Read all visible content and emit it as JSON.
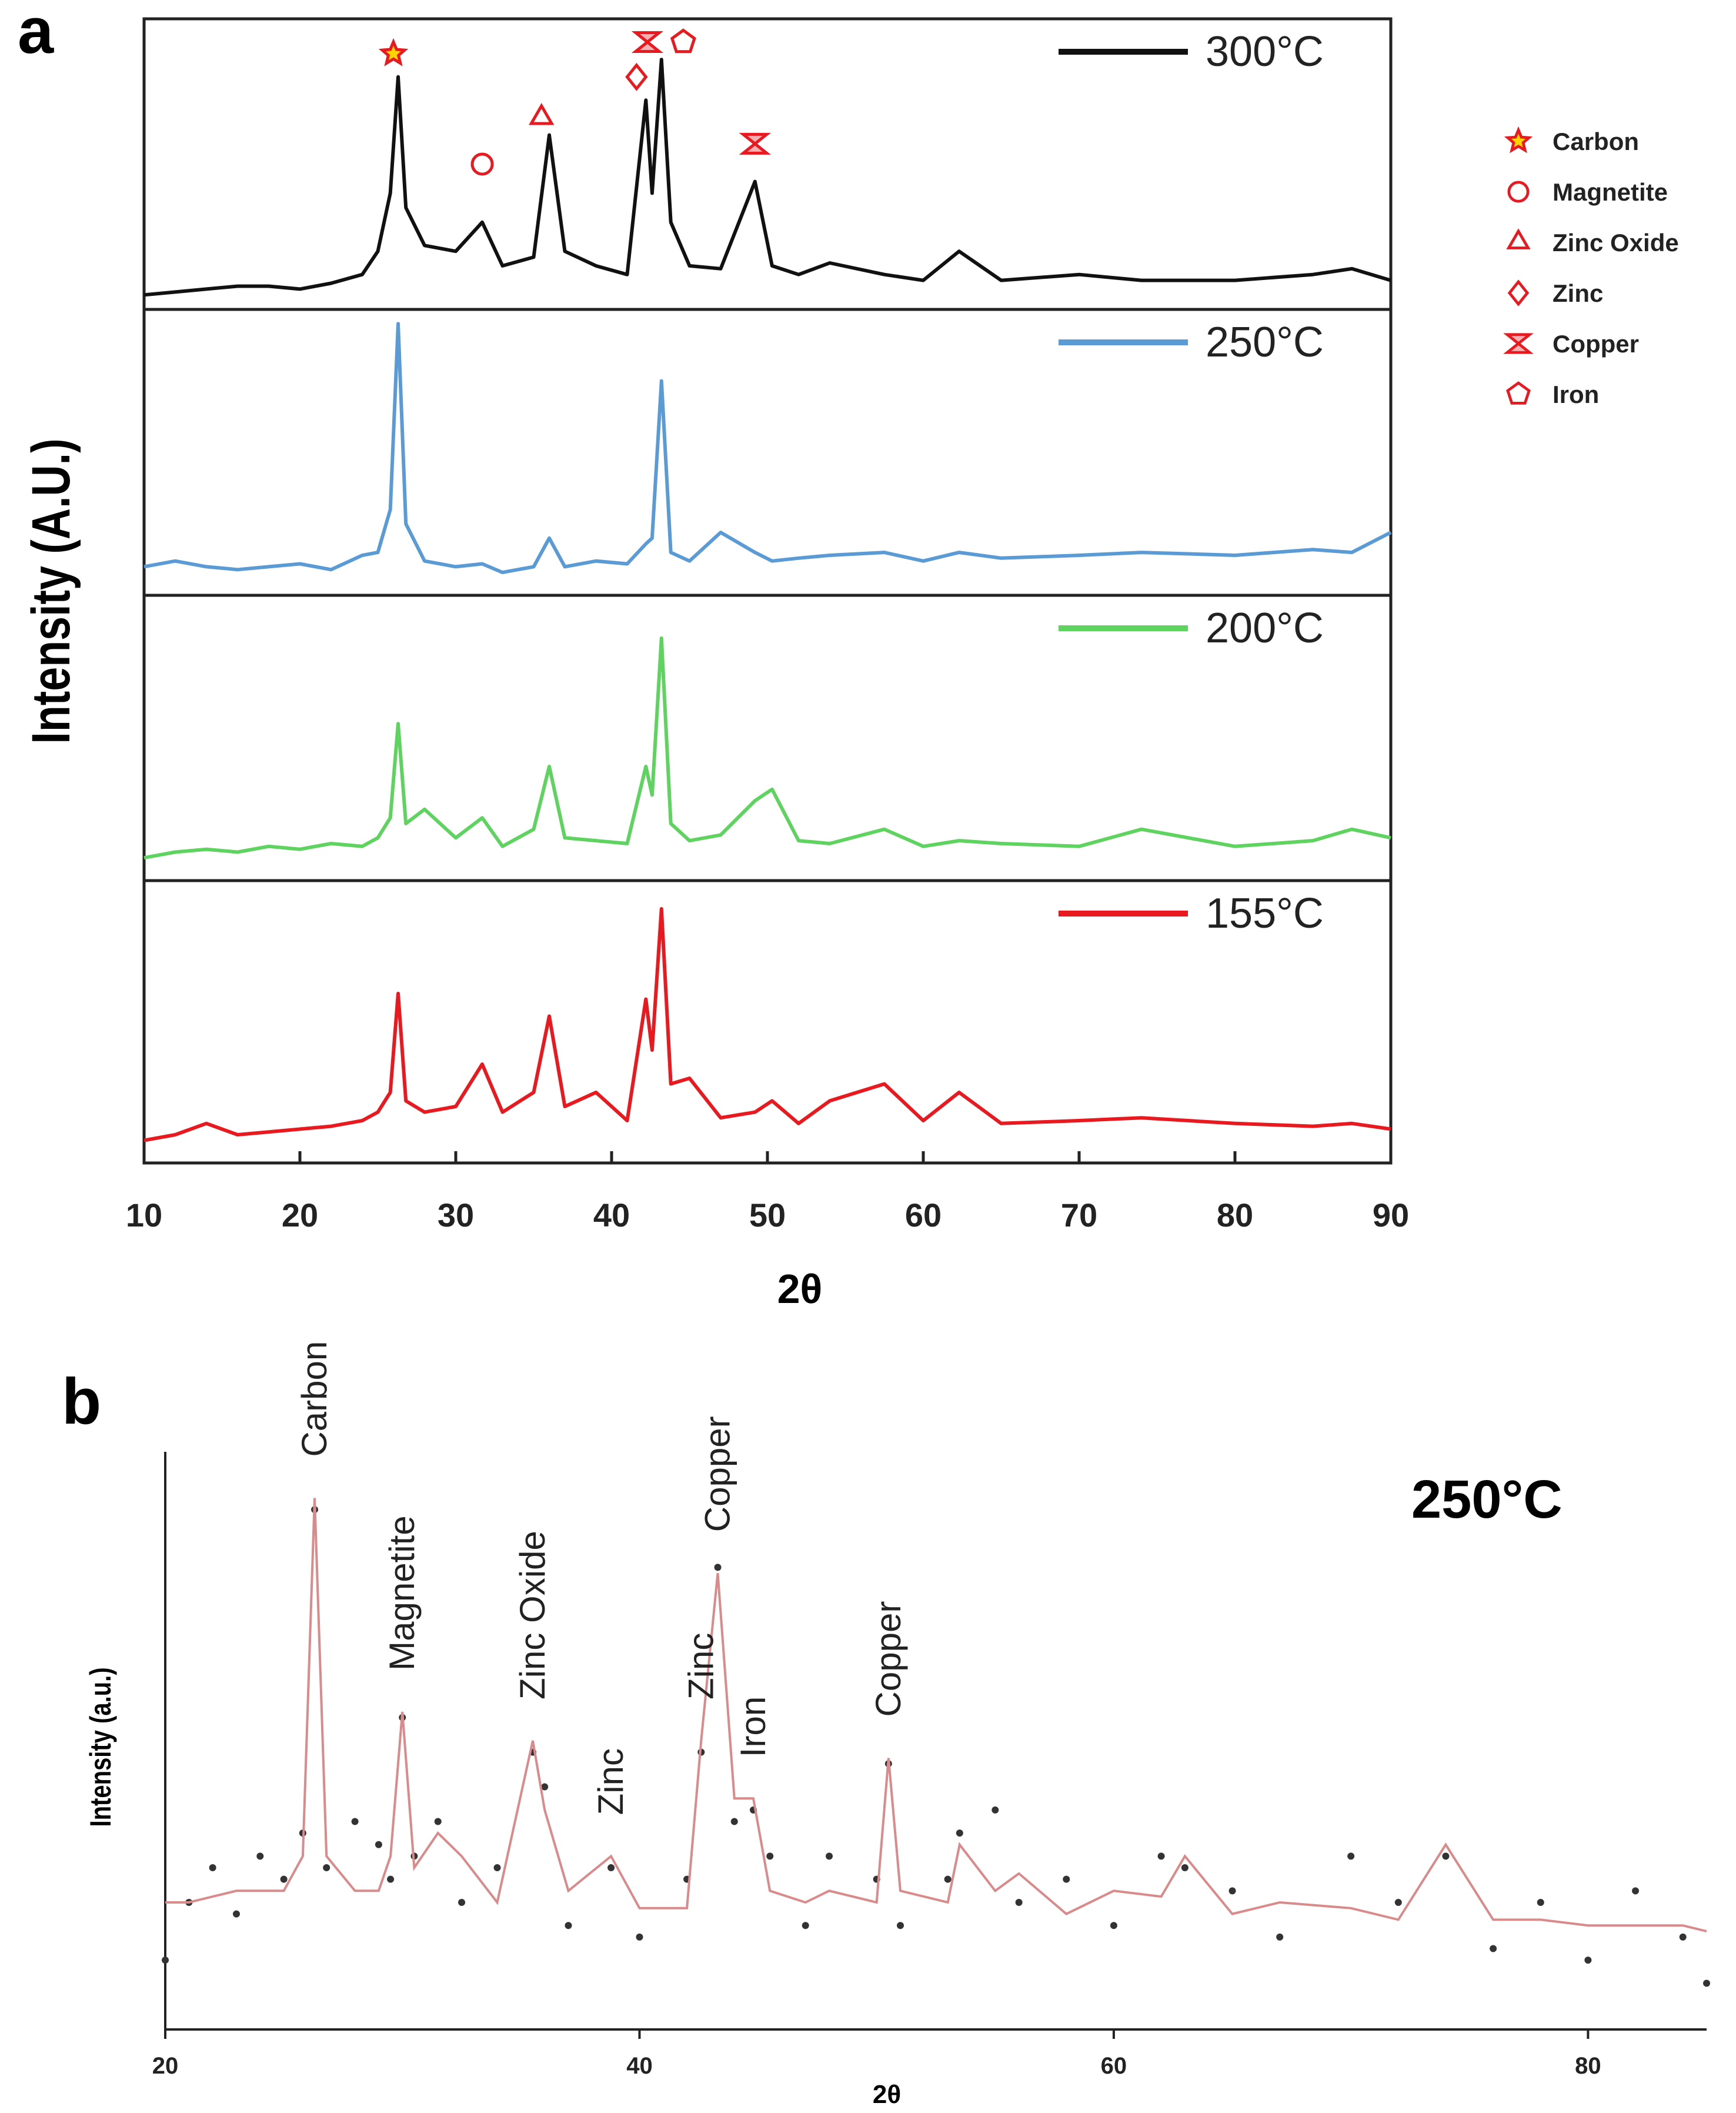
{
  "chart_data": [
    {
      "type": "line",
      "panel_label": "a",
      "xlabel": "2θ",
      "ylabel": "Intensity (A.U.)",
      "xlim": [
        10,
        90
      ],
      "xticks": [
        10,
        20,
        30,
        40,
        50,
        60,
        70,
        80,
        90
      ],
      "ylim": [
        0,
        100
      ],
      "x": [
        10,
        12,
        14,
        16,
        18,
        20,
        22,
        24,
        25,
        25.8,
        26.3,
        26.8,
        28,
        30,
        31.7,
        33,
        35,
        36,
        37,
        39,
        41,
        42.2,
        42.6,
        43.2,
        43.8,
        45,
        47,
        49.2,
        50.3,
        52,
        54,
        57.5,
        60,
        62.3,
        65,
        70,
        74,
        80,
        85,
        87.5,
        90
      ],
      "series": [
        {
          "name": "300°C",
          "color": "#111111",
          "values": [
            5,
            6,
            7,
            8,
            8,
            7,
            9,
            12,
            20,
            40,
            80,
            35,
            22,
            20,
            30,
            15,
            18,
            60,
            20,
            15,
            12,
            72,
            40,
            86,
            30,
            15,
            14,
            44,
            15,
            12,
            16,
            12,
            10,
            20,
            10,
            12,
            10,
            10,
            12,
            14,
            10
          ]
        },
        {
          "name": "250°C",
          "color": "#5b9bd5",
          "values": [
            10,
            12,
            10,
            9,
            10,
            11,
            9,
            14,
            15,
            30,
            95,
            25,
            12,
            10,
            11,
            8,
            10,
            20,
            10,
            12,
            11,
            18,
            20,
            75,
            15,
            12,
            22,
            15,
            12,
            13,
            14,
            15,
            12,
            15,
            13,
            14,
            15,
            14,
            16,
            15,
            22
          ]
        },
        {
          "name": "200°C",
          "color": "#5fd35f",
          "values": [
            8,
            10,
            11,
            10,
            12,
            11,
            13,
            12,
            15,
            22,
            55,
            20,
            25,
            15,
            22,
            12,
            18,
            40,
            15,
            14,
            13,
            40,
            30,
            85,
            20,
            14,
            16,
            28,
            32,
            14,
            13,
            18,
            12,
            14,
            13,
            12,
            18,
            12,
            14,
            18,
            15
          ]
        },
        {
          "name": "155°C",
          "color": "#e8191f",
          "values": [
            8,
            10,
            14,
            10,
            11,
            12,
            13,
            15,
            18,
            25,
            60,
            22,
            18,
            20,
            35,
            18,
            25,
            52,
            20,
            25,
            15,
            58,
            40,
            90,
            28,
            30,
            16,
            18,
            22,
            14,
            22,
            28,
            15,
            25,
            14,
            15,
            16,
            14,
            13,
            14,
            12
          ]
        }
      ],
      "markers": [
        {
          "symbol": "star",
          "x": 26.0,
          "y": 88
        },
        {
          "symbol": "circle",
          "x": 31.7,
          "y": 50
        },
        {
          "symbol": "triangle",
          "x": 35.5,
          "y": 66
        },
        {
          "symbol": "diamond",
          "x": 41.6,
          "y": 80
        },
        {
          "symbol": "hourglass",
          "x": 42.3,
          "y": 92
        },
        {
          "symbol": "pentagon",
          "x": 44.6,
          "y": 92
        },
        {
          "symbol": "hourglass",
          "x": 49.2,
          "y": 57
        }
      ],
      "legend": [
        {
          "symbol": "star",
          "label": "Carbon"
        },
        {
          "symbol": "circle",
          "label": "Magnetite"
        },
        {
          "symbol": "triangle",
          "label": "Zinc Oxide"
        },
        {
          "symbol": "diamond",
          "label": "Zinc"
        },
        {
          "symbol": "hourglass",
          "label": "Copper"
        },
        {
          "symbol": "pentagon",
          "label": "Iron"
        }
      ]
    },
    {
      "type": "scatter",
      "panel_label": "b",
      "xlabel": "2θ",
      "ylabel": "Intensity (a.u.)",
      "annotation_text": "250°C",
      "xlim": [
        20,
        85
      ],
      "xticks": [
        20,
        40,
        60,
        80
      ],
      "ylim": [
        0,
        100
      ],
      "x": [
        20,
        21,
        22,
        23,
        24,
        25,
        25.8,
        26.3,
        26.8,
        28,
        29,
        29.5,
        30,
        30.5,
        31.5,
        32.5,
        34,
        35.5,
        36,
        37,
        38.8,
        40,
        42,
        42.6,
        43.3,
        44,
        44.8,
        45.5,
        47,
        48,
        50,
        50.5,
        51,
        53,
        53.5,
        55,
        56,
        58,
        60,
        62,
        63,
        65,
        67,
        70,
        72,
        74,
        76,
        78,
        80,
        82,
        84,
        85
      ],
      "series": [
        {
          "mode": "markers",
          "color": "#333333",
          "values": [
            12,
            22,
            28,
            20,
            30,
            26,
            34,
            90,
            28,
            36,
            32,
            26,
            54,
            30,
            36,
            22,
            28,
            48,
            42,
            18,
            28,
            16,
            26,
            48,
            80,
            36,
            38,
            30,
            18,
            30,
            26,
            46,
            18,
            26,
            34,
            38,
            22,
            26,
            18,
            30,
            28,
            24,
            16,
            30,
            22,
            30,
            14,
            22,
            12,
            24,
            16,
            8
          ]
        },
        {
          "mode": "line",
          "color": "#d98a8a",
          "values": [
            22,
            22,
            23,
            24,
            24,
            24,
            30,
            92,
            30,
            24,
            24,
            30,
            55,
            28,
            34,
            30,
            22,
            50,
            38,
            24,
            30,
            21,
            21,
            50,
            79,
            40,
            40,
            24,
            22,
            24,
            22,
            47,
            24,
            22,
            32,
            24,
            27,
            20,
            24,
            23,
            30,
            20,
            22,
            21,
            19,
            32,
            19,
            19,
            18,
            18,
            18,
            17
          ]
        }
      ],
      "annotations": [
        {
          "text": "Carbon",
          "x": 26.3
        },
        {
          "text": "Magnetite",
          "x": 30
        },
        {
          "text": "Zinc Oxide",
          "x": 35.5
        },
        {
          "text": "Zinc",
          "x": 38.8
        },
        {
          "text": "Zinc",
          "x": 42.6
        },
        {
          "text": "Copper",
          "x": 43.3
        },
        {
          "text": "Iron",
          "x": 44.8
        },
        {
          "text": "Copper",
          "x": 50.5
        }
      ]
    }
  ]
}
